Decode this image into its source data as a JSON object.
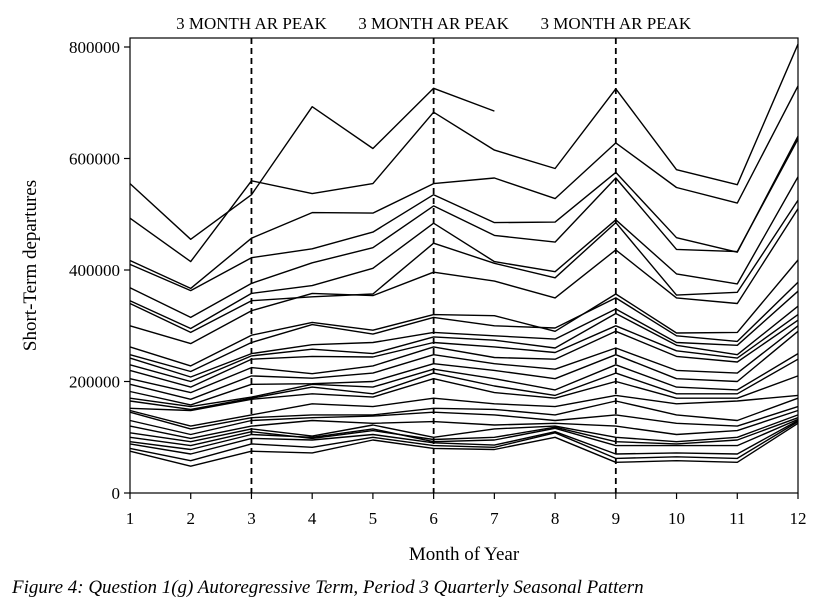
{
  "figure_caption": "Figure 4: Question 1(g) Autoregressive Term, Period 3 Quarterly Seasonal Pattern",
  "chart_data": {
    "type": "line",
    "title": "",
    "xlabel": "Month of Year",
    "ylabel": "Short-Term departures",
    "xlim": [
      1,
      12
    ],
    "ylim": [
      0,
      820000
    ],
    "x_ticks": [
      1,
      2,
      3,
      4,
      5,
      6,
      7,
      8,
      9,
      10,
      11,
      12
    ],
    "y_ticks": [
      0,
      200000,
      400000,
      600000,
      800000
    ],
    "y_tick_labels": [
      "0",
      "200000",
      "400000",
      "600000",
      "800000"
    ],
    "grid": false,
    "legend": "none",
    "line_color": "#000000",
    "reference_lines": [
      {
        "x": 3,
        "label": "3 MONTH AR PEAK",
        "style": "dashed"
      },
      {
        "x": 6,
        "label": "3 MONTH AR PEAK",
        "style": "dashed"
      },
      {
        "x": 9,
        "label": "3 MONTH AR PEAK",
        "style": "dashed"
      }
    ],
    "x": [
      1,
      2,
      3,
      4,
      5,
      6,
      7,
      8,
      9,
      10,
      11,
      12
    ],
    "series": [
      {
        "values": [
          555000,
          455000,
          535000,
          693000,
          618000,
          726000,
          685000,
          null,
          null,
          null,
          null,
          null
        ]
      },
      {
        "values": [
          493000,
          415000,
          560000,
          537000,
          555000,
          683000,
          615000,
          582000,
          725000,
          580000,
          553000,
          805000
        ]
      },
      {
        "values": [
          417000,
          367000,
          457000,
          503000,
          502000,
          555000,
          565000,
          528000,
          628000,
          548000,
          520000,
          730000
        ]
      },
      {
        "values": [
          410000,
          363000,
          422000,
          438000,
          468000,
          535000,
          485000,
          486000,
          575000,
          458000,
          432000,
          640000
        ]
      },
      {
        "values": [
          368000,
          315000,
          376000,
          413000,
          440000,
          515000,
          462000,
          450000,
          565000,
          437000,
          433000,
          635000
        ]
      },
      {
        "values": [
          345000,
          295000,
          358000,
          372000,
          403000,
          484000,
          415000,
          397000,
          490000,
          393000,
          375000,
          567000
        ]
      },
      {
        "values": [
          340000,
          288000,
          345000,
          352000,
          357000,
          448000,
          412000,
          386000,
          485000,
          355000,
          360000,
          525000
        ]
      },
      {
        "values": [
          300000,
          268000,
          327000,
          358000,
          354000,
          396000,
          380000,
          350000,
          436000,
          350000,
          340000,
          510000
        ]
      },
      {
        "values": [
          262000,
          228000,
          283000,
          306000,
          292000,
          320000,
          318000,
          290000,
          357000,
          287000,
          288000,
          418000
        ]
      },
      {
        "values": [
          248000,
          218000,
          270000,
          302000,
          285000,
          315000,
          300000,
          296000,
          350000,
          282000,
          272000,
          378000
        ]
      },
      {
        "values": [
          242000,
          208000,
          250000,
          266000,
          270000,
          288000,
          282000,
          276000,
          330000,
          270000,
          265000,
          362000
        ]
      },
      {
        "values": [
          230000,
          200000,
          246000,
          258000,
          250000,
          280000,
          274000,
          260000,
          322000,
          265000,
          248000,
          335000
        ]
      },
      {
        "values": [
          220000,
          190000,
          240000,
          245000,
          244000,
          270000,
          262000,
          252000,
          300000,
          255000,
          242000,
          320000
        ]
      },
      {
        "values": [
          205000,
          180000,
          225000,
          214000,
          228000,
          262000,
          243000,
          240000,
          290000,
          245000,
          235000,
          310000
        ]
      },
      {
        "values": [
          195000,
          168000,
          210000,
          206000,
          215000,
          248000,
          232000,
          222000,
          260000,
          220000,
          215000,
          300000
        ]
      },
      {
        "values": [
          182000,
          158000,
          195000,
          196000,
          200000,
          232000,
          220000,
          205000,
          248000,
          205000,
          200000,
          290000
        ]
      },
      {
        "values": [
          170000,
          155000,
          172000,
          195000,
          190000,
          222000,
          205000,
          185000,
          230000,
          190000,
          185000,
          250000
        ]
      },
      {
        "values": [
          165000,
          150000,
          170000,
          190000,
          178000,
          215000,
          192000,
          175000,
          215000,
          178000,
          178000,
          240000
        ]
      },
      {
        "values": [
          152000,
          148000,
          168000,
          178000,
          172000,
          205000,
          180000,
          170000,
          200000,
          170000,
          170000,
          210000
        ]
      },
      {
        "values": [
          148000,
          120000,
          140000,
          160000,
          155000,
          170000,
          160000,
          155000,
          175000,
          160000,
          165000,
          175000
        ]
      },
      {
        "values": [
          145000,
          115000,
          135000,
          140000,
          140000,
          152000,
          150000,
          140000,
          165000,
          140000,
          130000,
          170000
        ]
      },
      {
        "values": [
          130000,
          105000,
          130000,
          135000,
          138000,
          145000,
          140000,
          130000,
          140000,
          125000,
          120000,
          155000
        ]
      },
      {
        "values": [
          120000,
          98000,
          120000,
          130000,
          125000,
          128000,
          122000,
          125000,
          120000,
          105000,
          112000,
          148000
        ]
      },
      {
        "values": [
          108000,
          92000,
          115000,
          102000,
          122000,
          100000,
          115000,
          120000,
          100000,
          92000,
          100000,
          140000
        ]
      },
      {
        "values": [
          100000,
          85000,
          110000,
          98000,
          112000,
          96000,
          100000,
          118000,
          92000,
          88000,
          95000,
          135000
        ]
      },
      {
        "values": [
          92000,
          78000,
          105000,
          100000,
          115000,
          92000,
          95000,
          116000,
          85000,
          85000,
          85000,
          132000
        ]
      },
      {
        "values": [
          88000,
          70000,
          98000,
          95000,
          105000,
          90000,
          86000,
          110000,
          70000,
          72000,
          70000,
          130000
        ]
      },
      {
        "values": [
          80000,
          58000,
          88000,
          82000,
          100000,
          85000,
          82000,
          108000,
          62000,
          65000,
          62000,
          128000
        ]
      },
      {
        "values": [
          75000,
          48000,
          75000,
          72000,
          95000,
          80000,
          78000,
          100000,
          55000,
          58000,
          55000,
          125000
        ]
      }
    ]
  }
}
